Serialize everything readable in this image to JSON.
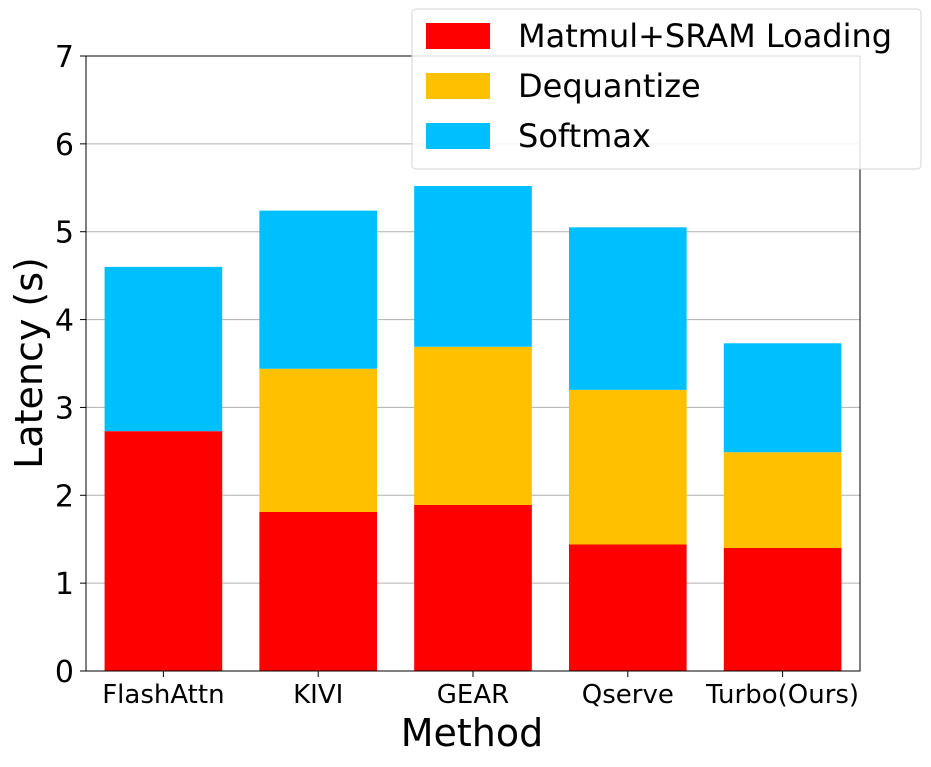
{
  "chart_data": {
    "type": "bar",
    "stacked": true,
    "title": "",
    "xlabel": "Method",
    "ylabel": "Latency (s)",
    "ylim": [
      0,
      7
    ],
    "yticks": [
      0,
      1,
      2,
      3,
      4,
      5,
      6,
      7
    ],
    "grid": "y",
    "legend_position": "top-right",
    "categories": [
      "FlashAttn",
      "KIVI",
      "GEAR",
      "Qserve",
      "Turbo(Ours)"
    ],
    "series": [
      {
        "name": "Matmul+SRAM Loading",
        "color": "#ff0000",
        "values": [
          2.73,
          1.81,
          1.89,
          1.44,
          1.4
        ]
      },
      {
        "name": "Dequantize",
        "color": "#ffc000",
        "values": [
          0,
          1.63,
          1.8,
          1.76,
          1.09
        ]
      },
      {
        "name": "Softmax",
        "color": "#00bfff",
        "values": [
          1.87,
          1.8,
          1.83,
          1.85,
          1.24
        ]
      }
    ]
  }
}
